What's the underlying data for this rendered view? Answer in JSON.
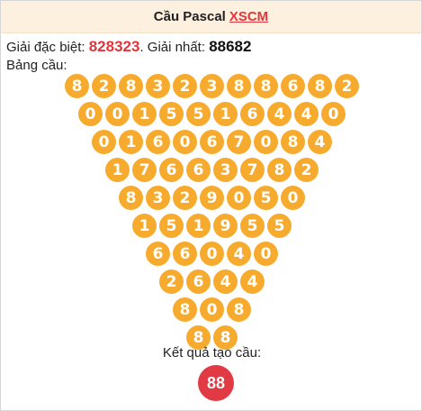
{
  "header": {
    "title": "Cầu Pascal",
    "link": "XSCM"
  },
  "info": {
    "special_label": "Giải đặc biệt:",
    "special_value": "828323",
    "separator": ".",
    "first_label": "Giải nhất:",
    "first_value": "88682"
  },
  "table_label": "Bảng cầu:",
  "rows": [
    [
      "8",
      "2",
      "8",
      "3",
      "2",
      "3",
      "8",
      "8",
      "6",
      "8",
      "2"
    ],
    [
      "0",
      "0",
      "1",
      "5",
      "5",
      "1",
      "6",
      "4",
      "4",
      "0"
    ],
    [
      "0",
      "1",
      "6",
      "0",
      "6",
      "7",
      "0",
      "8",
      "4"
    ],
    [
      "1",
      "7",
      "6",
      "6",
      "3",
      "7",
      "8",
      "2"
    ],
    [
      "8",
      "3",
      "2",
      "9",
      "0",
      "5",
      "0"
    ],
    [
      "1",
      "5",
      "1",
      "9",
      "5",
      "5"
    ],
    [
      "6",
      "6",
      "0",
      "4",
      "0"
    ],
    [
      "2",
      "6",
      "4",
      "4"
    ],
    [
      "8",
      "0",
      "8"
    ],
    [
      "8",
      "8"
    ]
  ],
  "result": {
    "label": "Kết quả tạo cầu:",
    "value": "88"
  },
  "colors": {
    "ball": "#f6ab2f",
    "result_ball": "#e23a45",
    "accent": "#e4343b",
    "header_bg": "#fdf0df"
  }
}
